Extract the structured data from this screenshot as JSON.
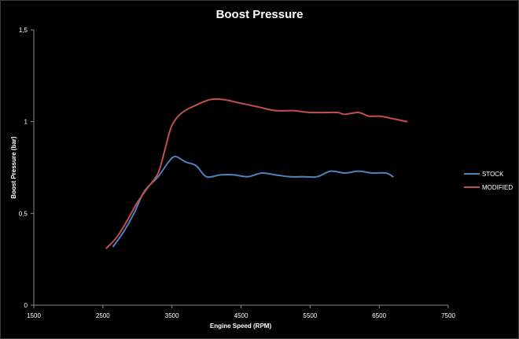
{
  "chart_data": {
    "type": "line",
    "title": "Boost Pressure",
    "xlabel": "Engine Speed (RPM)",
    "ylabel": "Boost Pressure (bar)",
    "xlim": [
      1500,
      7500
    ],
    "ylim": [
      0,
      1.5
    ],
    "x_ticks": [
      1500,
      2500,
      3500,
      4500,
      5500,
      6500,
      7500
    ],
    "x_tick_labels": [
      "1500",
      "2500",
      "3500",
      "4500",
      "5500",
      "6500",
      "7500"
    ],
    "y_ticks": [
      0,
      0.5,
      1,
      1.5
    ],
    "y_tick_labels": [
      "0",
      "0,5",
      "1",
      "1,5"
    ],
    "grid": false,
    "legend_position": "right",
    "series": [
      {
        "name": "STOCK",
        "color": "#4f81bd",
        "points": [
          [
            2650,
            0.32
          ],
          [
            2800,
            0.4
          ],
          [
            2950,
            0.5
          ],
          [
            3100,
            0.62
          ],
          [
            3300,
            0.7
          ],
          [
            3450,
            0.78
          ],
          [
            3550,
            0.81
          ],
          [
            3700,
            0.78
          ],
          [
            3850,
            0.76
          ],
          [
            4000,
            0.7
          ],
          [
            4200,
            0.71
          ],
          [
            4400,
            0.71
          ],
          [
            4600,
            0.7
          ],
          [
            4800,
            0.72
          ],
          [
            5000,
            0.71
          ],
          [
            5200,
            0.7
          ],
          [
            5400,
            0.7
          ],
          [
            5600,
            0.7
          ],
          [
            5800,
            0.73
          ],
          [
            6000,
            0.72
          ],
          [
            6200,
            0.73
          ],
          [
            6400,
            0.72
          ],
          [
            6600,
            0.72
          ],
          [
            6700,
            0.7
          ]
        ]
      },
      {
        "name": "MODIFIED",
        "color": "#c0504d",
        "points": [
          [
            2550,
            0.31
          ],
          [
            2700,
            0.37
          ],
          [
            2850,
            0.46
          ],
          [
            3000,
            0.56
          ],
          [
            3150,
            0.64
          ],
          [
            3300,
            0.72
          ],
          [
            3400,
            0.85
          ],
          [
            3500,
            0.98
          ],
          [
            3650,
            1.05
          ],
          [
            3850,
            1.09
          ],
          [
            4050,
            1.12
          ],
          [
            4250,
            1.12
          ],
          [
            4500,
            1.1
          ],
          [
            4750,
            1.08
          ],
          [
            5000,
            1.06
          ],
          [
            5250,
            1.06
          ],
          [
            5500,
            1.05
          ],
          [
            5750,
            1.05
          ],
          [
            5900,
            1.05
          ],
          [
            6000,
            1.04
          ],
          [
            6200,
            1.05
          ],
          [
            6350,
            1.03
          ],
          [
            6500,
            1.03
          ],
          [
            6650,
            1.02
          ],
          [
            6900,
            1.0
          ]
        ]
      }
    ]
  }
}
